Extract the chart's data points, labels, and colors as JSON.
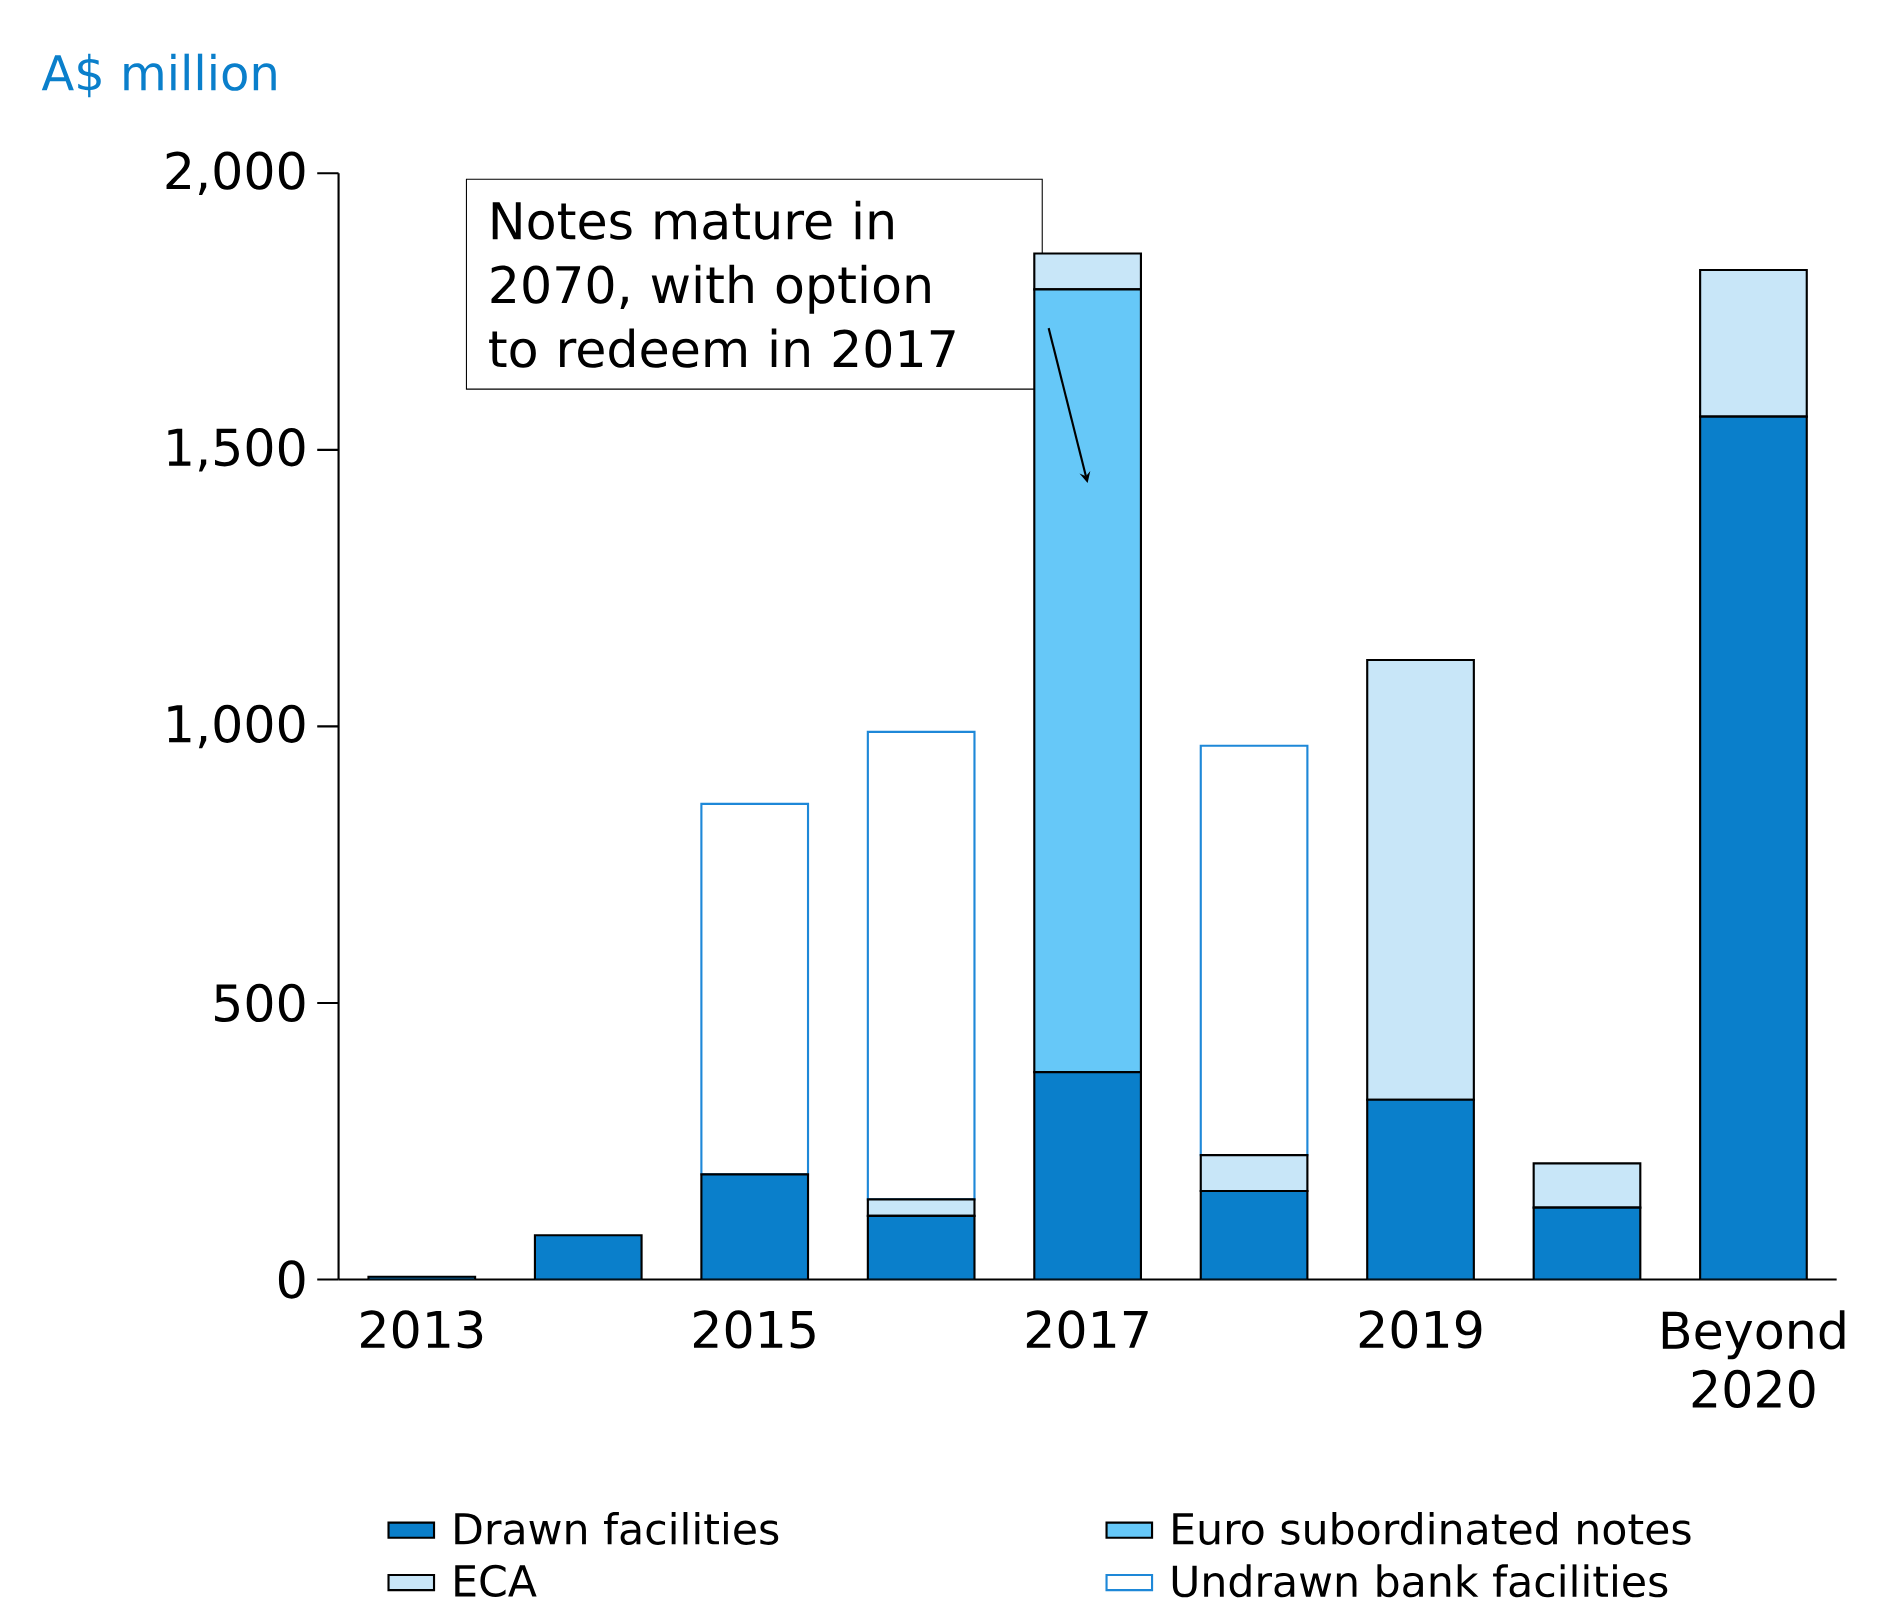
{
  "chart_data": {
    "type": "bar",
    "stacked": true,
    "ylabel": "A$ million",
    "categories": [
      "2013",
      null,
      "2015",
      null,
      "2017",
      null,
      "2019",
      null,
      "Beyond 2020"
    ],
    "series": [
      {
        "name": "Drawn facilities",
        "color": "#0a7fcb",
        "values": [
          5,
          80,
          190,
          115,
          375,
          160,
          325,
          130,
          1560
        ]
      },
      {
        "name": "Euro subordinated notes",
        "color": "#66c8f8",
        "values": [
          0,
          0,
          0,
          0,
          1415,
          0,
          0,
          0,
          0
        ]
      },
      {
        "name": "ECA",
        "color": "#c8e6f8",
        "values": [
          0,
          0,
          0,
          30,
          65,
          65,
          795,
          80,
          265
        ]
      },
      {
        "name": "Undrawn bank facilities",
        "color": "#ffffff",
        "values": [
          0,
          0,
          670,
          845,
          0,
          740,
          0,
          0,
          0
        ]
      }
    ],
    "ylim": [
      0,
      2000
    ],
    "yticks": [
      0,
      500,
      {
        "value": 1000,
        "label": "1,000"
      },
      {
        "value": 1500,
        "label": "1,500"
      },
      {
        "value": 2000,
        "label": "2,000"
      }
    ],
    "annotations": [
      "Notes mature in 2070, with option to redeem in 2017"
    ],
    "legend": "bottom",
    "grid": false
  }
}
